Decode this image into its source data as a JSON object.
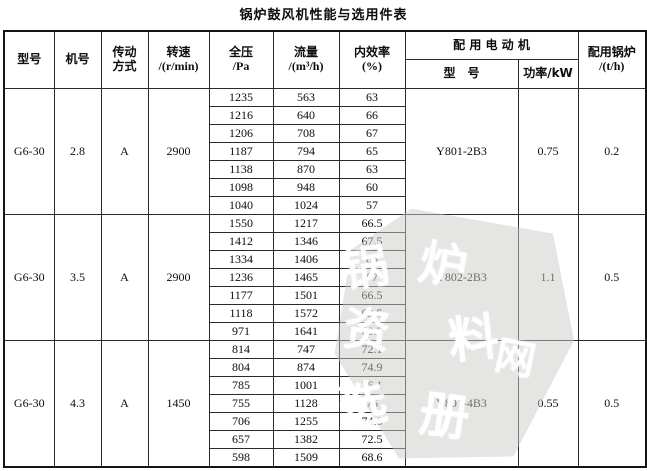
{
  "title": "锅炉鼓风机性能与选用件表",
  "header": {
    "model": "型号",
    "fan_no": "机号",
    "drive": [
      "传动",
      "方式"
    ],
    "speed": [
      "转速",
      "/(r/min)"
    ],
    "pressure": [
      "全压",
      "/Pa"
    ],
    "flow": [
      "流量",
      "/(m³/h)"
    ],
    "efficiency": [
      "内效率",
      "(%)"
    ],
    "motor_group": "配 用 电 动 机",
    "motor_model": "型　号",
    "motor_power": "功率/kW",
    "boiler": [
      "配用锅炉",
      "/(t/h)"
    ]
  },
  "sections": [
    {
      "model": "G6-30",
      "fan_no": "2.8",
      "drive": "A",
      "speed": "2900",
      "rows": [
        [
          "1235",
          "563",
          "63"
        ],
        [
          "1216",
          "640",
          "66"
        ],
        [
          "1206",
          "708",
          "67"
        ],
        [
          "1187",
          "794",
          "65"
        ],
        [
          "1138",
          "870",
          "63"
        ],
        [
          "1098",
          "948",
          "60"
        ],
        [
          "1040",
          "1024",
          "57"
        ]
      ],
      "motor_model": "Y801-2B3",
      "motor_power": "0.75",
      "boiler": "0.2"
    },
    {
      "model": "G6-30",
      "fan_no": "3.5",
      "drive": "A",
      "speed": "2900",
      "rows": [
        [
          "1550",
          "1217",
          "66.5"
        ],
        [
          "1412",
          "1346",
          "67.5"
        ],
        [
          "1334",
          "1406",
          "68"
        ],
        [
          "1236",
          "1465",
          "67"
        ],
        [
          "1177",
          "1501",
          "66.5"
        ],
        [
          "1118",
          "1572",
          "63.5"
        ],
        [
          "971",
          "1641",
          "60.5"
        ]
      ],
      "motor_model": "Y802-2B3",
      "motor_power": "1.1",
      "boiler": "0.5"
    },
    {
      "model": "G6-30",
      "fan_no": "4.3",
      "drive": "A",
      "speed": "1450",
      "rows": [
        [
          "814",
          "747",
          "72.1"
        ],
        [
          "804",
          "874",
          "74.9"
        ],
        [
          "785",
          "1001",
          "76.1"
        ],
        [
          "755",
          "1128",
          "76"
        ],
        [
          "706",
          "1255",
          "74.8"
        ],
        [
          "657",
          "1382",
          "72.5"
        ],
        [
          "598",
          "1509",
          "68.6"
        ]
      ],
      "motor_model": "Y801-4B3",
      "motor_power": "0.55",
      "boiler": "0.5"
    }
  ],
  "watermark": {
    "chars": [
      "锅",
      "炉",
      "资",
      "料",
      "网",
      "选",
      "册"
    ]
  }
}
